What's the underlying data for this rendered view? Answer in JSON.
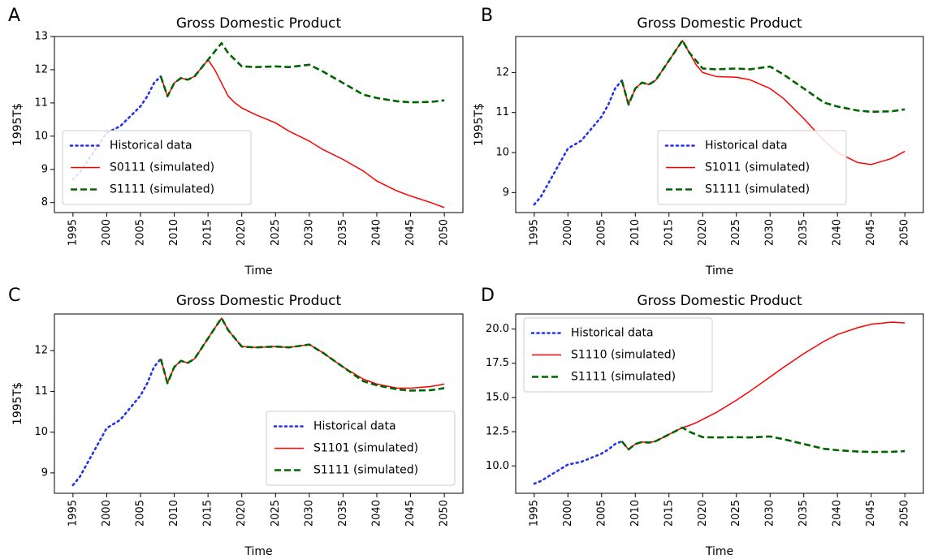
{
  "chart_data": [
    {
      "type": "line",
      "panel_label": "A",
      "title": "Gross Domestic Product",
      "xlabel": "Time",
      "ylabel": "1995T$",
      "xlim": [
        1992.25,
        2052.75
      ],
      "ylim": [
        7.7,
        13.0
      ],
      "xticks": [
        1995,
        2000,
        2005,
        2010,
        2015,
        2020,
        2025,
        2030,
        2035,
        2040,
        2045,
        2050
      ],
      "yticks": [
        8,
        9,
        10,
        11,
        12,
        13
      ],
      "legend": "lower left",
      "series": [
        {
          "name": "Historical data",
          "color": "#2233ee",
          "style": "dotted",
          "x": [
            1995,
            1996,
            1997,
            1998,
            1999,
            2000,
            2001,
            2002,
            2003,
            2004,
            2005,
            2006,
            2007,
            2008
          ],
          "values": [
            8.7,
            8.9,
            9.2,
            9.5,
            9.8,
            10.1,
            10.2,
            10.3,
            10.5,
            10.7,
            10.9,
            11.2,
            11.6,
            11.8
          ]
        },
        {
          "name": "S0111 (simulated)",
          "color": "#ff0000",
          "style": "solid",
          "x": [
            2008,
            2009,
            2010,
            2011,
            2012,
            2013,
            2014,
            2015,
            2016,
            2017,
            2018,
            2019,
            2020,
            2022,
            2025,
            2027,
            2030,
            2032,
            2035,
            2038,
            2040,
            2043,
            2045,
            2048,
            2050
          ],
          "values": [
            11.8,
            11.2,
            11.6,
            11.75,
            11.7,
            11.8,
            12.05,
            12.3,
            12.0,
            11.6,
            11.2,
            11.0,
            10.85,
            10.65,
            10.4,
            10.15,
            9.85,
            9.6,
            9.3,
            8.95,
            8.65,
            8.35,
            8.2,
            8.0,
            7.85
          ]
        },
        {
          "name": "S1111 (simulated)",
          "color": "#006400",
          "style": "dashed",
          "x": [
            2008,
            2009,
            2010,
            2011,
            2012,
            2013,
            2014,
            2015,
            2016,
            2017,
            2018,
            2019,
            2020,
            2022,
            2025,
            2027,
            2030,
            2032,
            2035,
            2038,
            2040,
            2043,
            2045,
            2048,
            2050
          ],
          "values": [
            11.8,
            11.2,
            11.6,
            11.75,
            11.7,
            11.8,
            12.05,
            12.3,
            12.55,
            12.8,
            12.5,
            12.3,
            12.1,
            12.08,
            12.1,
            12.08,
            12.15,
            11.95,
            11.6,
            11.25,
            11.15,
            11.05,
            11.02,
            11.03,
            11.08
          ]
        }
      ]
    },
    {
      "type": "line",
      "panel_label": "B",
      "title": "Gross Domestic Product",
      "xlabel": "Time",
      "ylabel": "1995T$",
      "xlim": [
        1992.25,
        2052.75
      ],
      "ylim": [
        8.5,
        12.9
      ],
      "xticks": [
        1995,
        2000,
        2005,
        2010,
        2015,
        2020,
        2025,
        2030,
        2035,
        2040,
        2045,
        2050
      ],
      "yticks": [
        9,
        10,
        11,
        12
      ],
      "legend": "lower center",
      "series": [
        {
          "name": "Historical data",
          "color": "#2233ee",
          "style": "dotted",
          "x": [
            1995,
            1996,
            1997,
            1998,
            1999,
            2000,
            2001,
            2002,
            2003,
            2004,
            2005,
            2006,
            2007,
            2008
          ],
          "values": [
            8.7,
            8.9,
            9.2,
            9.5,
            9.8,
            10.1,
            10.2,
            10.3,
            10.5,
            10.7,
            10.9,
            11.2,
            11.6,
            11.8
          ]
        },
        {
          "name": "S1011 (simulated)",
          "color": "#ff0000",
          "style": "solid",
          "x": [
            2008,
            2009,
            2010,
            2011,
            2012,
            2013,
            2014,
            2015,
            2016,
            2017,
            2018,
            2019,
            2020,
            2022,
            2025,
            2027,
            2030,
            2032,
            2035,
            2038,
            2040,
            2043,
            2045,
            2048,
            2050
          ],
          "values": [
            11.8,
            11.2,
            11.6,
            11.75,
            11.7,
            11.8,
            12.05,
            12.3,
            12.55,
            12.8,
            12.5,
            12.2,
            12.0,
            11.9,
            11.88,
            11.82,
            11.6,
            11.35,
            10.85,
            10.3,
            10.0,
            9.75,
            9.7,
            9.85,
            10.03
          ]
        },
        {
          "name": "S1111 (simulated)",
          "color": "#006400",
          "style": "dashed",
          "x": [
            2008,
            2009,
            2010,
            2011,
            2012,
            2013,
            2014,
            2015,
            2016,
            2017,
            2018,
            2019,
            2020,
            2022,
            2025,
            2027,
            2030,
            2032,
            2035,
            2038,
            2040,
            2043,
            2045,
            2048,
            2050
          ],
          "values": [
            11.8,
            11.2,
            11.6,
            11.75,
            11.7,
            11.8,
            12.05,
            12.3,
            12.55,
            12.8,
            12.5,
            12.3,
            12.1,
            12.08,
            12.1,
            12.08,
            12.15,
            11.95,
            11.6,
            11.25,
            11.15,
            11.05,
            11.02,
            11.03,
            11.08
          ]
        }
      ]
    },
    {
      "type": "line",
      "panel_label": "C",
      "title": "Gross Domestic Product",
      "xlabel": "Time",
      "ylabel": "1995T$",
      "xlim": [
        1992.25,
        2052.75
      ],
      "ylim": [
        8.5,
        12.9
      ],
      "xticks": [
        1995,
        2000,
        2005,
        2010,
        2015,
        2020,
        2025,
        2030,
        2035,
        2040,
        2045,
        2050
      ],
      "yticks": [
        9,
        10,
        11,
        12
      ],
      "legend": "lower right",
      "series": [
        {
          "name": "Historical data",
          "color": "#2233ee",
          "style": "dotted",
          "x": [
            1995,
            1996,
            1997,
            1998,
            1999,
            2000,
            2001,
            2002,
            2003,
            2004,
            2005,
            2006,
            2007,
            2008
          ],
          "values": [
            8.7,
            8.9,
            9.2,
            9.5,
            9.8,
            10.1,
            10.2,
            10.3,
            10.5,
            10.7,
            10.9,
            11.2,
            11.6,
            11.8
          ]
        },
        {
          "name": "S1101 (simulated)",
          "color": "#ff0000",
          "style": "solid",
          "x": [
            2008,
            2009,
            2010,
            2011,
            2012,
            2013,
            2014,
            2015,
            2016,
            2017,
            2018,
            2019,
            2020,
            2022,
            2025,
            2027,
            2030,
            2032,
            2035,
            2038,
            2040,
            2043,
            2045,
            2048,
            2050
          ],
          "values": [
            11.8,
            11.2,
            11.6,
            11.75,
            11.7,
            11.8,
            12.05,
            12.3,
            12.55,
            12.8,
            12.5,
            12.3,
            12.1,
            12.08,
            12.1,
            12.08,
            12.15,
            11.95,
            11.6,
            11.3,
            11.18,
            11.08,
            11.08,
            11.12,
            11.18
          ]
        },
        {
          "name": "S1111 (simulated)",
          "color": "#006400",
          "style": "dashed",
          "x": [
            2008,
            2009,
            2010,
            2011,
            2012,
            2013,
            2014,
            2015,
            2016,
            2017,
            2018,
            2019,
            2020,
            2022,
            2025,
            2027,
            2030,
            2032,
            2035,
            2038,
            2040,
            2043,
            2045,
            2048,
            2050
          ],
          "values": [
            11.8,
            11.2,
            11.6,
            11.75,
            11.7,
            11.8,
            12.05,
            12.3,
            12.55,
            12.8,
            12.5,
            12.3,
            12.1,
            12.08,
            12.1,
            12.08,
            12.15,
            11.95,
            11.6,
            11.25,
            11.15,
            11.05,
            11.02,
            11.03,
            11.08
          ]
        }
      ]
    },
    {
      "type": "line",
      "panel_label": "D",
      "title": "Gross Domestic Product",
      "xlabel": "Time",
      "xlim": [
        1992.25,
        2052.75
      ],
      "ylim": [
        8.0,
        21.1
      ],
      "xticks": [
        1995,
        2000,
        2005,
        2010,
        2015,
        2020,
        2025,
        2030,
        2035,
        2040,
        2045,
        2050
      ],
      "yticks": [
        {
          "value": 10,
          "label": "10.0"
        },
        {
          "value": 12.5,
          "label": "12.5"
        },
        {
          "value": 15,
          "label": "15.0"
        },
        {
          "value": 17.5,
          "label": "17.5"
        },
        {
          "value": 20,
          "label": "20.0"
        }
      ],
      "legend": "upper left",
      "series": [
        {
          "name": "Historical data",
          "color": "#2233ee",
          "style": "dotted",
          "x": [
            1995,
            1996,
            1997,
            1998,
            1999,
            2000,
            2001,
            2002,
            2003,
            2004,
            2005,
            2006,
            2007,
            2008
          ],
          "values": [
            8.7,
            8.9,
            9.2,
            9.5,
            9.8,
            10.1,
            10.2,
            10.3,
            10.5,
            10.7,
            10.9,
            11.2,
            11.6,
            11.8
          ]
        },
        {
          "name": "S1110 (simulated)",
          "color": "#ff0000",
          "style": "solid",
          "x": [
            2008,
            2009,
            2010,
            2011,
            2012,
            2013,
            2014,
            2015,
            2016,
            2017,
            2018,
            2019,
            2020,
            2022,
            2025,
            2027,
            2030,
            2032,
            2035,
            2038,
            2040,
            2043,
            2045,
            2048,
            2050
          ],
          "values": [
            11.8,
            11.2,
            11.6,
            11.75,
            11.7,
            11.8,
            12.05,
            12.3,
            12.55,
            12.8,
            12.95,
            13.15,
            13.4,
            13.9,
            14.8,
            15.45,
            16.5,
            17.2,
            18.2,
            19.1,
            19.6,
            20.1,
            20.35,
            20.5,
            20.45
          ]
        },
        {
          "name": "S1111 (simulated)",
          "color": "#006400",
          "style": "dashed",
          "x": [
            2008,
            2009,
            2010,
            2011,
            2012,
            2013,
            2014,
            2015,
            2016,
            2017,
            2018,
            2019,
            2020,
            2022,
            2025,
            2027,
            2030,
            2032,
            2035,
            2038,
            2040,
            2043,
            2045,
            2048,
            2050
          ],
          "values": [
            11.8,
            11.2,
            11.6,
            11.75,
            11.7,
            11.8,
            12.05,
            12.3,
            12.55,
            12.8,
            12.5,
            12.3,
            12.1,
            12.08,
            12.1,
            12.08,
            12.15,
            11.95,
            11.6,
            11.25,
            11.15,
            11.05,
            11.02,
            11.03,
            11.08
          ]
        }
      ]
    }
  ]
}
